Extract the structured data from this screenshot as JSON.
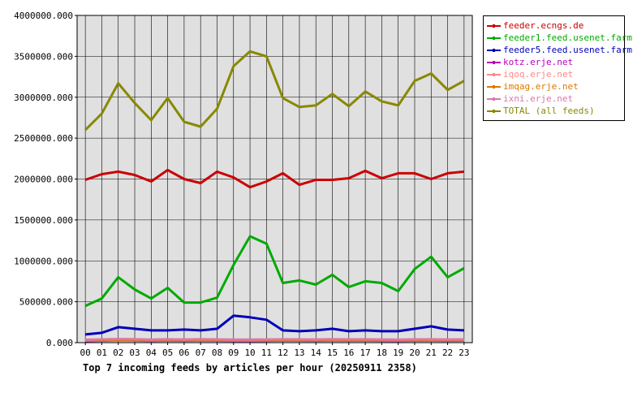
{
  "chart_data": {
    "type": "line",
    "title": "Top 7 incoming feeds by articles per hour (20250911 2358)",
    "xlabel": "",
    "ylabel": "",
    "x": [
      "00",
      "01",
      "02",
      "03",
      "04",
      "05",
      "06",
      "07",
      "08",
      "09",
      "10",
      "11",
      "12",
      "13",
      "14",
      "15",
      "16",
      "17",
      "18",
      "19",
      "20",
      "21",
      "22",
      "23"
    ],
    "ylim": [
      0,
      4000000
    ],
    "yticks": [
      "0.000",
      "500000.000",
      "1000000.000",
      "1500000.000",
      "2000000.000",
      "2500000.000",
      "3000000.000",
      "3500000.000",
      "4000000.000"
    ],
    "grid": true,
    "legend_position": "right",
    "colors": {
      "plot_background": "#e0e0e0",
      "grid": "#000000"
    },
    "series": [
      {
        "name": "feeder.ecngs.de",
        "color": "#cc0000",
        "values": [
          1990000,
          2060000,
          2090000,
          2050000,
          1970000,
          2110000,
          2000000,
          1950000,
          2090000,
          2020000,
          1900000,
          1970000,
          2070000,
          1930000,
          1990000,
          1990000,
          2010000,
          2100000,
          2010000,
          2070000,
          2070000,
          2000000,
          2070000,
          2090000
        ]
      },
      {
        "name": "feeder1.feed.usenet.farm",
        "color": "#00aa00",
        "values": [
          450000,
          540000,
          800000,
          650000,
          540000,
          670000,
          490000,
          490000,
          550000,
          950000,
          1300000,
          1210000,
          730000,
          760000,
          710000,
          830000,
          680000,
          750000,
          730000,
          630000,
          900000,
          1050000,
          800000,
          910000
        ]
      },
      {
        "name": "feeder5.feed.usenet.farm",
        "color": "#0000bb",
        "values": [
          100000,
          120000,
          190000,
          170000,
          150000,
          150000,
          160000,
          150000,
          170000,
          330000,
          310000,
          280000,
          150000,
          140000,
          150000,
          170000,
          140000,
          150000,
          140000,
          140000,
          170000,
          200000,
          160000,
          150000
        ]
      },
      {
        "name": "kotz.erje.net",
        "color": "#bb00bb",
        "values": [
          20000,
          25000,
          30000,
          28000,
          22000,
          26000,
          24000,
          27000,
          25000,
          23000,
          22000,
          24000,
          26000,
          25000,
          24000,
          27000,
          25000,
          26000,
          24000,
          23000,
          25000,
          26000,
          24000,
          25000
        ]
      },
      {
        "name": "iqoq.erje.net",
        "color": "#ff8888",
        "values": [
          30000,
          35000,
          40000,
          38000,
          32000,
          36000,
          34000,
          37000,
          35000,
          33000,
          32000,
          34000,
          36000,
          35000,
          34000,
          37000,
          35000,
          36000,
          34000,
          33000,
          35000,
          36000,
          34000,
          35000
        ]
      },
      {
        "name": "imqag.erje.net",
        "color": "#dd7700",
        "values": [
          25000,
          28000,
          32000,
          30000,
          26000,
          29000,
          27000,
          30000,
          28000,
          26000,
          25000,
          27000,
          29000,
          28000,
          27000,
          30000,
          28000,
          29000,
          27000,
          26000,
          28000,
          29000,
          27000,
          28000
        ]
      },
      {
        "name": "ixni.erje.net",
        "color": "#dd77aa",
        "values": [
          35000,
          40000,
          45000,
          43000,
          37000,
          41000,
          39000,
          42000,
          40000,
          38000,
          37000,
          39000,
          41000,
          40000,
          39000,
          42000,
          40000,
          41000,
          39000,
          38000,
          40000,
          41000,
          39000,
          40000
        ]
      },
      {
        "name": "TOTAL (all feeds)",
        "color": "#888800",
        "values": [
          2600000,
          2800000,
          3170000,
          2930000,
          2720000,
          2990000,
          2700000,
          2640000,
          2860000,
          3380000,
          3560000,
          3500000,
          2990000,
          2880000,
          2900000,
          3040000,
          2890000,
          3070000,
          2950000,
          2900000,
          3200000,
          3290000,
          3090000,
          3200000
        ]
      }
    ]
  }
}
